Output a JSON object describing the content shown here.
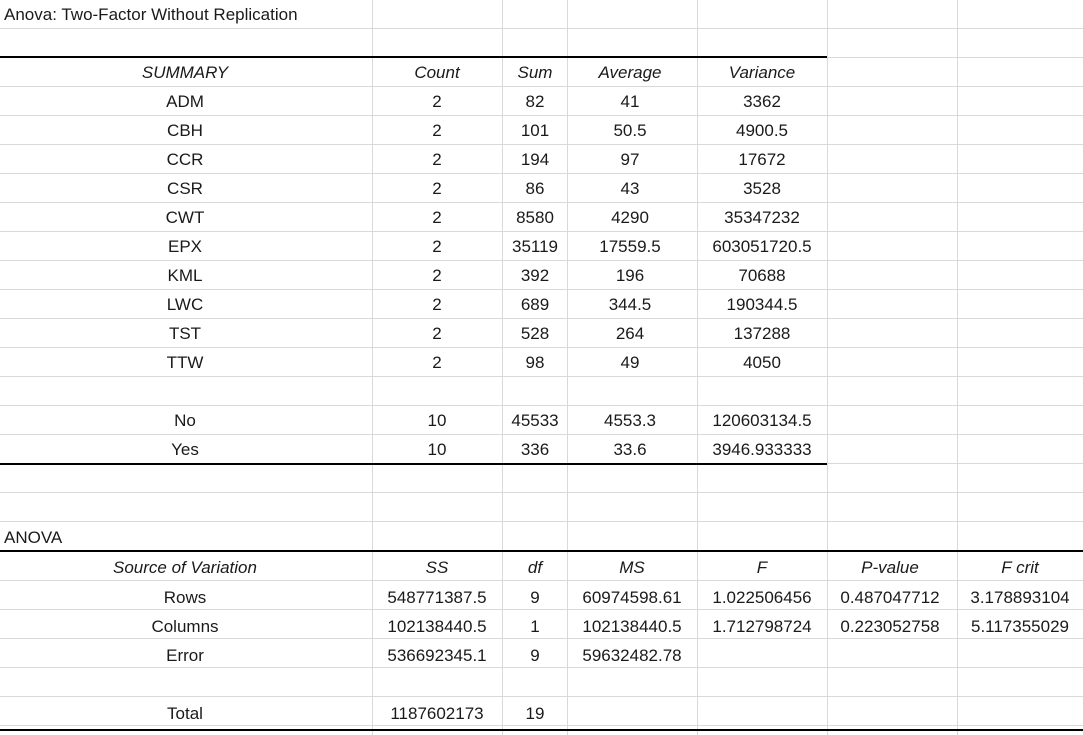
{
  "title": "Anova: Two-Factor Without Replication",
  "summary": {
    "headers": [
      "SUMMARY",
      "Count",
      "Sum",
      "Average",
      "Variance"
    ],
    "rows": [
      [
        "ADM",
        "2",
        "82",
        "41",
        "3362"
      ],
      [
        "CBH",
        "2",
        "101",
        "50.5",
        "4900.5"
      ],
      [
        "CCR",
        "2",
        "194",
        "97",
        "17672"
      ],
      [
        "CSR",
        "2",
        "86",
        "43",
        "3528"
      ],
      [
        "CWT",
        "2",
        "8580",
        "4290",
        "35347232"
      ],
      [
        "EPX",
        "2",
        "35119",
        "17559.5",
        "603051720.5"
      ],
      [
        "KML",
        "2",
        "392",
        "196",
        "70688"
      ],
      [
        "LWC",
        "2",
        "689",
        "344.5",
        "190344.5"
      ],
      [
        "TST",
        "2",
        "528",
        "264",
        "137288"
      ],
      [
        "TTW",
        "2",
        "98",
        "49",
        "4050"
      ]
    ],
    "col_rows": [
      [
        "No",
        "10",
        "45533",
        "4553.3",
        "120603134.5"
      ],
      [
        "Yes",
        "10",
        "336",
        "33.6",
        "3946.933333"
      ]
    ]
  },
  "anova": {
    "label": "ANOVA",
    "headers": [
      "Source of Variation",
      "SS",
      "df",
      "MS",
      "F",
      "P-value",
      "F crit"
    ],
    "rows": [
      [
        "Rows",
        "548771387.5",
        "9",
        "60974598.61",
        "1.022506456",
        "0.487047712",
        "3.178893104"
      ],
      [
        "Columns",
        "102138440.5",
        "1",
        "102138440.5",
        "1.712798724",
        "0.223052758",
        "5.117355029"
      ],
      [
        "Error",
        "536692345.1",
        "9",
        "59632482.78",
        "",
        "",
        ""
      ]
    ],
    "total": [
      "Total",
      "1187602173",
      "19"
    ]
  }
}
